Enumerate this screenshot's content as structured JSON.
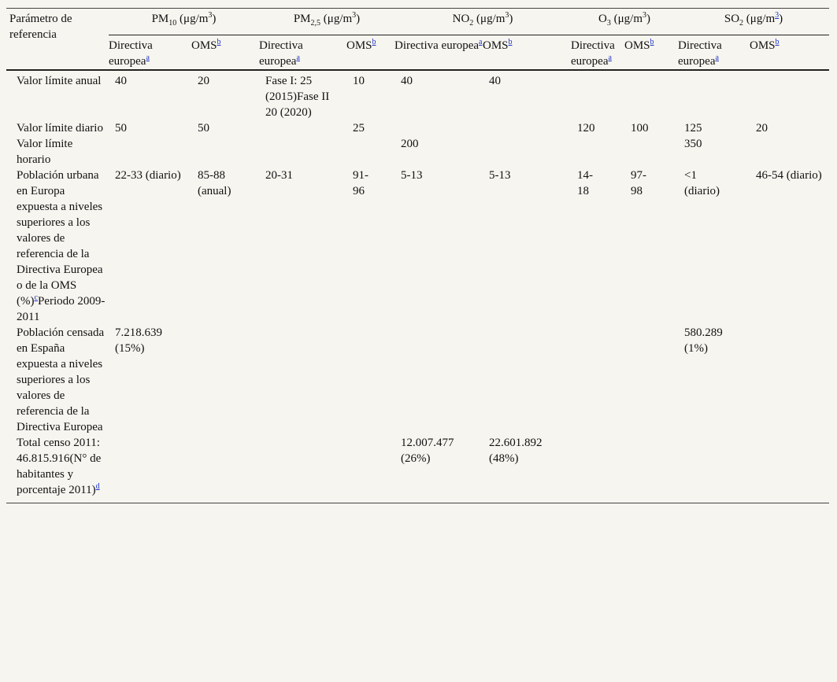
{
  "header": {
    "param_label": "Parámetro de referencia",
    "groups": [
      {
        "base": "PM",
        "sub": "10",
        "unit_pre": " (μg/m",
        "unit_sup": "3",
        "unit_post": ")"
      },
      {
        "base": "PM",
        "sub": "2,5",
        "unit_pre": " (μg/m",
        "unit_sup": "3",
        "unit_post": ")"
      },
      {
        "base": "NO",
        "sub": "2",
        "unit_pre": " (μg/m",
        "unit_sup": "3",
        "unit_post": ")"
      },
      {
        "base": "O",
        "sub": "3",
        "unit_pre": " (μg/m",
        "unit_sup": "3",
        "unit_post": ")"
      },
      {
        "base": "SO",
        "sub": "2",
        "unit_pre": " (μg/m",
        "unit_sup": "3",
        "unit_post": ")"
      }
    ],
    "directiva_label": "Directiva europea",
    "oms_label": "OMS",
    "fn_a": "a",
    "fn_b": "b"
  },
  "rows": [
    {
      "label": "Valor límite anual",
      "cells": [
        "40",
        "20",
        "Fase I: 25 (2015)Fase II 20 (2020)",
        "10",
        "40",
        "40",
        "",
        "",
        "",
        ""
      ]
    },
    {
      "label": "Valor límite diario",
      "cells": [
        "50",
        "50",
        "",
        "25",
        "",
        "",
        "120",
        "100",
        "125",
        "20"
      ]
    },
    {
      "label": "Valor límite horario",
      "cells": [
        "",
        "",
        "",
        "",
        "200",
        "",
        "",
        "",
        "350",
        ""
      ]
    },
    {
      "label": "Población urbana en Europa expuesta a niveles superiores a los valores de referencia de la Directiva Europea o de la OMS (%)",
      "label_fn": "c",
      "label_tail": "Periodo 2009-2011",
      "cells": [
        "22-33 (diario)",
        "85-88 (anual)",
        "20-31",
        "91-96",
        "5-13",
        "5-13",
        "14-18",
        "97-98",
        "<1 (diario)",
        "46-54 (diario)"
      ]
    },
    {
      "label": "Población censada en España expuesta a niveles superiores a los valores de referencia de la Directiva Europea",
      "cells": [
        "7.218.639 (15%)",
        "",
        "",
        "",
        "",
        "",
        "",
        "",
        "580.289 (1%)",
        ""
      ]
    },
    {
      "label": "Total censo 2011: 46.815.916(N° de habitantes y porcentaje 2011)",
      "label_fn": "d",
      "cells": [
        "",
        "",
        "",
        "",
        "12.007.477 (26%)",
        "22.601.892 (48%)",
        "",
        "",
        "",
        ""
      ]
    }
  ]
}
